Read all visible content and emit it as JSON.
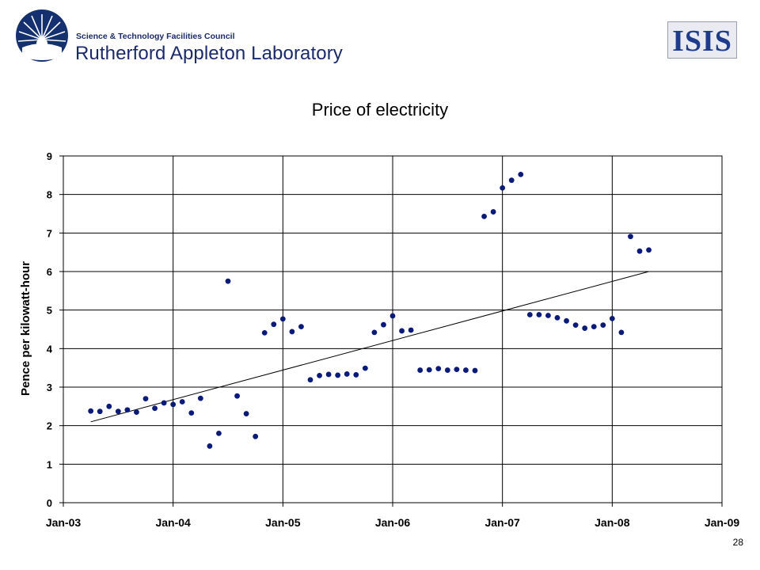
{
  "header": {
    "org_line1": "Science & Technology Facilities Council",
    "org_line2": "Rutherford Appleton Laboratory",
    "right_logo_text": "ISIS",
    "brand_color": "#1b2a6b"
  },
  "page_number": "28",
  "chart_data": {
    "type": "scatter",
    "title": "Price of electricity",
    "xlabel": "",
    "ylabel": "Pence per kilowatt-hour",
    "x_ticks": [
      "Jan-03",
      "Jan-04",
      "Jan-05",
      "Jan-06",
      "Jan-07",
      "Jan-08",
      "Jan-09"
    ],
    "xlim": [
      "2003-01",
      "2009-01"
    ],
    "ylim": [
      0,
      9
    ],
    "y_ticks": [
      "0",
      "1",
      "2",
      "3",
      "4",
      "5",
      "6",
      "7",
      "8",
      "9"
    ],
    "grid": true,
    "marker_color": "#0a1a7a",
    "series": [
      {
        "points": [
          [
            "2003-04",
            2.38
          ],
          [
            "2003-05",
            2.37
          ],
          [
            "2003-06",
            2.5
          ],
          [
            "2003-07",
            2.37
          ],
          [
            "2003-08",
            2.41
          ],
          [
            "2003-09",
            2.35
          ],
          [
            "2003-10",
            2.7
          ],
          [
            "2003-11",
            2.45
          ],
          [
            "2003-12",
            2.59
          ],
          [
            "2004-01",
            2.55
          ],
          [
            "2004-02",
            2.62
          ],
          [
            "2004-03",
            2.33
          ],
          [
            "2004-04",
            2.71
          ],
          [
            "2004-05",
            1.47
          ],
          [
            "2004-06",
            1.8
          ],
          [
            "2004-07",
            5.75
          ],
          [
            "2004-08",
            2.77
          ],
          [
            "2004-09",
            2.31
          ],
          [
            "2004-10",
            1.72
          ],
          [
            "2004-11",
            4.41
          ],
          [
            "2004-12",
            4.63
          ],
          [
            "2005-01",
            4.77
          ],
          [
            "2005-02",
            4.44
          ],
          [
            "2005-03",
            4.57
          ],
          [
            "2005-04",
            3.19
          ],
          [
            "2005-05",
            3.3
          ],
          [
            "2005-06",
            3.33
          ],
          [
            "2005-07",
            3.31
          ],
          [
            "2005-08",
            3.34
          ],
          [
            "2005-09",
            3.32
          ],
          [
            "2005-10",
            3.49
          ],
          [
            "2005-11",
            4.42
          ],
          [
            "2005-12",
            4.62
          ],
          [
            "2006-01",
            4.85
          ],
          [
            "2006-02",
            4.46
          ],
          [
            "2006-03",
            4.48
          ],
          [
            "2006-04",
            3.44
          ],
          [
            "2006-05",
            3.45
          ],
          [
            "2006-06",
            3.48
          ],
          [
            "2006-07",
            3.44
          ],
          [
            "2006-08",
            3.46
          ],
          [
            "2006-09",
            3.44
          ],
          [
            "2006-10",
            3.43
          ],
          [
            "2006-11",
            7.43
          ],
          [
            "2006-12",
            7.55
          ],
          [
            "2007-01",
            8.17
          ],
          [
            "2007-02",
            8.37
          ],
          [
            "2007-03",
            8.52
          ],
          [
            "2007-04",
            4.88
          ],
          [
            "2007-05",
            4.88
          ],
          [
            "2007-06",
            4.86
          ],
          [
            "2007-07",
            4.8
          ],
          [
            "2007-08",
            4.72
          ],
          [
            "2007-09",
            4.61
          ],
          [
            "2007-10",
            4.53
          ],
          [
            "2007-11",
            4.57
          ],
          [
            "2007-12",
            4.61
          ],
          [
            "2008-01",
            4.78
          ],
          [
            "2008-02",
            4.42
          ],
          [
            "2008-03",
            6.91
          ],
          [
            "2008-04",
            6.53
          ],
          [
            "2008-05",
            6.56
          ]
        ]
      }
    ],
    "trendline": {
      "type": "linear",
      "from": [
        "2003-04",
        2.1
      ],
      "to": [
        "2008-05",
        6.0
      ]
    }
  }
}
